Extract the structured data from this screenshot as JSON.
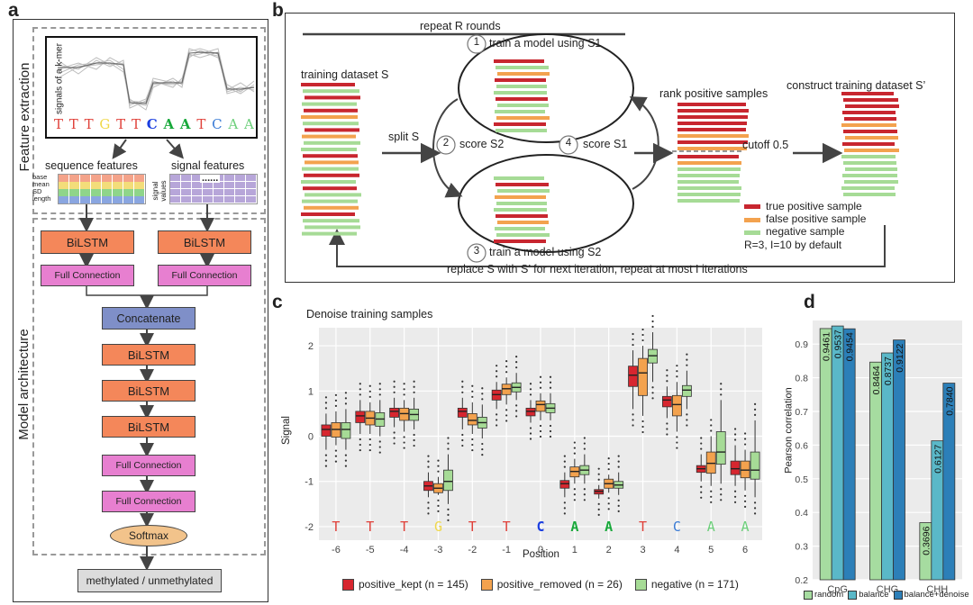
{
  "panel_labels": {
    "a": "a",
    "b": "b",
    "c": "c",
    "d": "d"
  },
  "panel_a": {
    "section_feature": "Feature extraction",
    "section_model": "Model architecture",
    "signal_axis_label": "signals of a k-mer",
    "kmer": [
      {
        "base": "T",
        "color": "#e0413a",
        "bold": false
      },
      {
        "base": "T",
        "color": "#e0413a",
        "bold": false
      },
      {
        "base": "T",
        "color": "#e0413a",
        "bold": false
      },
      {
        "base": "G",
        "color": "#f0d84a",
        "bold": false
      },
      {
        "base": "T",
        "color": "#e0413a",
        "bold": false
      },
      {
        "base": "T",
        "color": "#e0413a",
        "bold": false
      },
      {
        "base": "C",
        "color": "#1c3fe0",
        "bold": true
      },
      {
        "base": "A",
        "color": "#18a83a",
        "bold": true
      },
      {
        "base": "A",
        "color": "#18a83a",
        "bold": true
      },
      {
        "base": "T",
        "color": "#e0413a",
        "bold": false
      },
      {
        "base": "C",
        "color": "#3a7bd5",
        "bold": false
      },
      {
        "base": "A",
        "color": "#6ccf7a",
        "bold": false
      },
      {
        "base": "A",
        "color": "#6ccf7a",
        "bold": false
      }
    ],
    "sequence_features_label": "sequence features",
    "signal_features_label": "signal features",
    "seq_row_labels": [
      "base",
      "mean",
      "SD",
      "length"
    ],
    "signal_values_label": "signal values",
    "signal_ellipsis": "......",
    "bilstm_label": "BiLSTM",
    "full_connection_label": "Full Connection",
    "concatenate_label": "Concatenate",
    "softmax_label": "Softmax",
    "output_label": "methylated / unmethylated",
    "colors": {
      "bilstm": "#f4875a",
      "fc": "#e77fd0",
      "concat": "#7f8fc8",
      "softmax": "#f2c38b",
      "output": "#dcdcdc"
    }
  },
  "panel_b": {
    "repeat_rounds": "repeat R rounds",
    "step1": {
      "num": "1",
      "text": "train a model using S1"
    },
    "step2": {
      "num": "2",
      "text": "score S2"
    },
    "step3": {
      "num": "3",
      "text": "train a model using S2"
    },
    "step4": {
      "num": "4",
      "text": "score S1"
    },
    "training_dataset": "training dataset S",
    "split": "split S",
    "rank_positive": "rank positive samples",
    "cutoff": "cutoff 0.5",
    "construct": "construct training dataset S’",
    "legend": [
      {
        "label": "true positive sample",
        "color": "#c8262f"
      },
      {
        "label": "false positive sample",
        "color": "#f3a24e"
      },
      {
        "label": "negative sample",
        "color": "#a6db96"
      }
    ],
    "defaults": "R=3, I=10 by default",
    "replace": "replace S with S’ for next iteration, repeat at most I iterations"
  },
  "chart_data": [
    {
      "type": "box",
      "title": "Denoise training samples",
      "xlabel": "Position",
      "ylabel": "Signal",
      "ylim": [
        -2.3,
        2.4
      ],
      "yticks": [
        -2,
        -1,
        0,
        1,
        2
      ],
      "categories": [
        "-6",
        "-5",
        "-4",
        "-3",
        "-2",
        "-1",
        "0",
        "1",
        "2",
        "3",
        "4",
        "5",
        "6"
      ],
      "bases": [
        {
          "base": "T",
          "color": "#e0413a",
          "bold": false
        },
        {
          "base": "T",
          "color": "#e0413a",
          "bold": false
        },
        {
          "base": "T",
          "color": "#e0413a",
          "bold": false
        },
        {
          "base": "G",
          "color": "#f0d84a",
          "bold": false
        },
        {
          "base": "T",
          "color": "#e0413a",
          "bold": false
        },
        {
          "base": "T",
          "color": "#e0413a",
          "bold": false
        },
        {
          "base": "C",
          "color": "#1c3fe0",
          "bold": true
        },
        {
          "base": "A",
          "color": "#18a83a",
          "bold": true
        },
        {
          "base": "A",
          "color": "#18a83a",
          "bold": true
        },
        {
          "base": "T",
          "color": "#e0413a",
          "bold": false
        },
        {
          "base": "C",
          "color": "#3a7bd5",
          "bold": false
        },
        {
          "base": "A",
          "color": "#6ccf7a",
          "bold": false
        },
        {
          "base": "A",
          "color": "#6ccf7a",
          "bold": false
        }
      ],
      "series": [
        {
          "name": "positive_kept",
          "n": "n = 145",
          "color": "#d7262f",
          "median": [
            0.15,
            0.45,
            0.55,
            -1.1,
            0.55,
            0.92,
            0.55,
            -1.05,
            -1.22,
            1.35,
            0.8,
            -0.72,
            -0.72
          ],
          "q1": [
            0.0,
            0.3,
            0.42,
            -1.2,
            0.42,
            0.8,
            0.45,
            -1.15,
            -1.28,
            1.1,
            0.65,
            -0.8,
            -0.85
          ],
          "q3": [
            0.25,
            0.55,
            0.62,
            -1.0,
            0.62,
            1.02,
            0.62,
            -0.98,
            -1.18,
            1.55,
            0.88,
            -0.65,
            -0.55
          ],
          "wlo": [
            -0.3,
            0.05,
            0.2,
            -1.35,
            0.15,
            0.6,
            0.3,
            -1.35,
            -1.38,
            0.6,
            0.4,
            -1.0,
            -1.1
          ],
          "whi": [
            0.5,
            0.8,
            0.85,
            -0.8,
            0.85,
            1.2,
            0.8,
            -0.8,
            -1.08,
            1.9,
            1.1,
            -0.4,
            -0.2
          ]
        },
        {
          "name": "positive_removed",
          "n": "n = 26",
          "color": "#f3a24e",
          "median": [
            0.15,
            0.4,
            0.5,
            -1.15,
            0.35,
            1.05,
            0.7,
            -0.78,
            -1.05,
            1.4,
            0.7,
            -0.6,
            -0.75
          ],
          "q1": [
            -0.02,
            0.25,
            0.35,
            -1.25,
            0.25,
            0.92,
            0.55,
            -0.9,
            -1.15,
            0.9,
            0.45,
            -0.82,
            -0.92
          ],
          "q3": [
            0.3,
            0.55,
            0.62,
            -1.05,
            0.5,
            1.15,
            0.78,
            -0.68,
            -0.95,
            1.72,
            0.9,
            -0.35,
            -0.55
          ],
          "wlo": [
            -0.2,
            0.05,
            0.1,
            -1.3,
            0.05,
            0.7,
            0.35,
            -1.05,
            -1.25,
            0.45,
            0.1,
            -1.1,
            -1.2
          ],
          "whi": [
            0.55,
            0.75,
            0.8,
            -0.9,
            0.75,
            1.3,
            0.95,
            -0.5,
            -0.85,
            2.0,
            1.2,
            0.0,
            -0.3
          ]
        },
        {
          "name": "negative",
          "n": "n = 171",
          "color": "#a6db96",
          "median": [
            0.15,
            0.38,
            0.48,
            -1.0,
            0.3,
            1.08,
            0.62,
            -0.75,
            -1.08,
            1.78,
            1.02,
            -0.35,
            -0.75
          ],
          "q1": [
            -0.05,
            0.22,
            0.35,
            -1.2,
            0.18,
            0.98,
            0.52,
            -0.85,
            -1.15,
            1.62,
            0.88,
            -0.62,
            -0.95
          ],
          "q3": [
            0.3,
            0.52,
            0.6,
            -0.75,
            0.42,
            1.18,
            0.72,
            -0.65,
            -1.0,
            1.92,
            1.12,
            0.1,
            -0.35
          ],
          "wlo": [
            -0.3,
            0.0,
            0.15,
            -1.5,
            -0.05,
            0.8,
            0.35,
            -1.05,
            -1.3,
            1.2,
            0.6,
            -1.05,
            -1.35
          ],
          "whi": [
            0.6,
            0.8,
            0.85,
            -0.4,
            0.7,
            1.4,
            0.95,
            -0.4,
            -0.8,
            2.3,
            1.45,
            0.8,
            0.35
          ]
        }
      ],
      "legend_labels": [
        "positive_kept (n = 145)",
        "positive_removed (n = 26)",
        "negative (n = 171)"
      ]
    },
    {
      "type": "bar",
      "xlabel": "",
      "ylabel": "Pearson correlation",
      "ylim": [
        0.2,
        0.97
      ],
      "yticks": [
        0.2,
        0.3,
        0.4,
        0.5,
        0.6,
        0.7,
        0.8,
        0.9
      ],
      "categories": [
        "CpG",
        "CHG",
        "CHH"
      ],
      "series": [
        {
          "name": "random",
          "color": "#a6dca0",
          "values": [
            0.9461,
            0.8464,
            0.3696
          ],
          "labels": [
            "0.9461",
            "0.8464",
            "0.3696"
          ]
        },
        {
          "name": "balance",
          "color": "#5ab8c8",
          "values": [
            0.9537,
            0.8737,
            0.6127
          ],
          "labels": [
            "0.9537",
            "0.8737",
            "0.6127"
          ]
        },
        {
          "name": "balance+denoise",
          "color": "#2c7fb8",
          "values": [
            0.9454,
            0.9122,
            0.784
          ],
          "labels": [
            "0.9454",
            "0.9122",
            "0.7840"
          ]
        }
      ],
      "legend": "bottom"
    }
  ]
}
